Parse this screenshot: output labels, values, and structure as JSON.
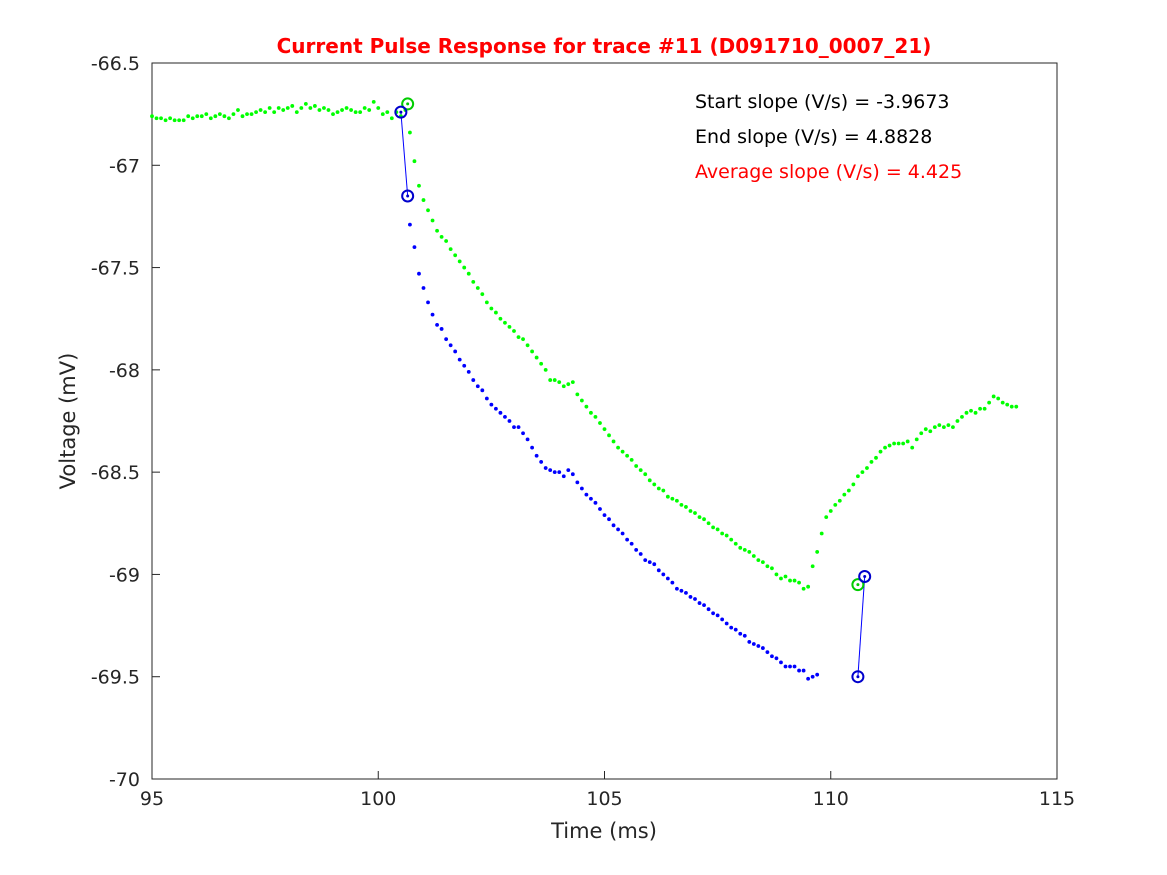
{
  "chart_data": {
    "type": "scatter",
    "title": "Current Pulse Response for trace #11 (D091710_0007_21)",
    "xlabel": "Time (ms)",
    "ylabel": "Voltage (mV)",
    "xlim": [
      95,
      115
    ],
    "ylim": [
      -70,
      -66.5
    ],
    "xticks": [
      95,
      100,
      105,
      110,
      115
    ],
    "xtick_labels": [
      "95",
      "100",
      "105",
      "110",
      "115"
    ],
    "yticks": [
      -70,
      -69.5,
      -69,
      -68.5,
      -68,
      -67.5,
      -67,
      -66.5
    ],
    "ytick_labels": [
      "-70",
      "-69.5",
      "-69",
      "-68.5",
      "-68",
      "-67.5",
      "-67",
      "-66.5"
    ],
    "grid": false,
    "legend": "none",
    "annotations": [
      {
        "text": "Start slope (V/s) = -3.9673",
        "color": "#000000"
      },
      {
        "text": "End slope (V/s) = 4.8828",
        "color": "#000000"
      },
      {
        "text": "Average slope (V/s) = 4.425",
        "color": "#ff0000"
      }
    ],
    "series": [
      {
        "color": "#00ff00",
        "marker": "dot",
        "x_start": 95,
        "x_step": 0.1,
        "y": [
          -66.76,
          -66.77,
          -66.77,
          -66.78,
          -66.77,
          -66.78,
          -66.78,
          -66.78,
          -66.76,
          -66.77,
          -66.76,
          -66.76,
          -66.75,
          -66.77,
          -66.76,
          -66.75,
          -66.76,
          -66.77,
          -66.75,
          -66.73,
          -66.76,
          -66.75,
          -66.75,
          -66.74,
          -66.73,
          -66.74,
          -66.72,
          -66.74,
          -66.72,
          -66.73,
          -66.72,
          -66.71,
          -66.74,
          -66.72,
          -66.7,
          -66.72,
          -66.71,
          -66.73,
          -66.72,
          -66.73,
          -66.75,
          -66.74,
          -66.73,
          -66.72,
          -66.73,
          -66.74,
          -66.74,
          -66.72,
          -66.73,
          -66.69,
          -66.72,
          -66.75,
          -66.74,
          -66.77,
          -66.74,
          -66.76,
          -66.73,
          -66.84,
          -66.98,
          -67.1,
          -67.17,
          -67.22,
          -67.27,
          -67.32,
          -67.35,
          -67.37,
          -67.41,
          -67.44,
          -67.47,
          -67.5,
          -67.53,
          -67.57,
          -67.6,
          -67.63,
          -67.67,
          -67.7,
          -67.72,
          -67.75,
          -67.77,
          -67.79,
          -67.81,
          -67.84,
          -67.85,
          -67.88,
          -67.91,
          -67.94,
          -67.97,
          -68.0,
          -68.05,
          -68.05,
          -68.06,
          -68.08,
          -68.07,
          -68.06,
          -68.12,
          -68.15,
          -68.18,
          -68.21,
          -68.23,
          -68.26,
          -68.29,
          -68.32,
          -68.35,
          -68.38,
          -68.4,
          -68.42,
          -68.44,
          -68.47,
          -68.49,
          -68.51,
          -68.54,
          -68.56,
          -68.58,
          -68.59,
          -68.62,
          -68.63,
          -68.64,
          -68.66,
          -68.67,
          -68.69,
          -68.7,
          -68.72,
          -68.73,
          -68.75,
          -68.77,
          -68.78,
          -68.8,
          -68.81,
          -68.83,
          -68.85,
          -68.87,
          -68.88,
          -68.89,
          -68.91,
          -68.93,
          -68.94,
          -68.96,
          -68.97,
          -69.0,
          -69.02,
          -69.01,
          -69.03,
          -69.03,
          -69.04,
          -69.07,
          -69.06,
          -68.96,
          -68.89,
          -68.8,
          -68.72,
          -68.69,
          -68.66,
          -68.64,
          -68.61,
          -68.59,
          -68.56,
          -68.52,
          -68.5,
          -68.48,
          -68.45,
          -68.43,
          -68.4,
          -68.38,
          -68.37,
          -68.36,
          -68.36,
          -68.36,
          -68.35,
          -68.38,
          -68.34,
          -68.31,
          -68.29,
          -68.3,
          -68.28,
          -68.27,
          -68.28,
          -68.27,
          -68.28,
          -68.25,
          -68.23,
          -68.21,
          -68.2,
          -68.21,
          -68.19,
          -68.19,
          -68.16,
          -68.13,
          -68.14,
          -68.16,
          -68.17,
          -68.18,
          -68.18
        ]
      },
      {
        "color": "#0000ff",
        "marker": "dot",
        "x_start": 100.7,
        "x_step": 0.1,
        "y": [
          -67.29,
          -67.4,
          -67.53,
          -67.6,
          -67.67,
          -67.73,
          -67.78,
          -67.8,
          -67.85,
          -67.88,
          -67.91,
          -67.95,
          -67.98,
          -68.01,
          -68.05,
          -68.08,
          -68.1,
          -68.14,
          -68.17,
          -68.19,
          -68.21,
          -68.23,
          -68.25,
          -68.28,
          -68.28,
          -68.31,
          -68.34,
          -68.38,
          -68.42,
          -68.45,
          -68.48,
          -68.49,
          -68.5,
          -68.5,
          -68.52,
          -68.49,
          -68.51,
          -68.55,
          -68.58,
          -68.61,
          -68.63,
          -68.65,
          -68.68,
          -68.71,
          -68.73,
          -68.76,
          -68.78,
          -68.8,
          -68.83,
          -68.85,
          -68.88,
          -68.9,
          -68.93,
          -68.94,
          -68.95,
          -68.98,
          -69.0,
          -69.02,
          -69.04,
          -69.07,
          -69.08,
          -69.09,
          -69.11,
          -69.12,
          -69.14,
          -69.15,
          -69.17,
          -69.19,
          -69.2,
          -69.22,
          -69.24,
          -69.26,
          -69.27,
          -69.29,
          -69.3,
          -69.33,
          -69.34,
          -69.35,
          -69.36,
          -69.38,
          -69.4,
          -69.41,
          -69.43,
          -69.45,
          -69.45,
          -69.45,
          -69.47,
          -69.47,
          -69.51,
          -69.5,
          -69.49
        ]
      }
    ],
    "markers": [
      {
        "color": "#00cc00",
        "x": 100.65,
        "y": -66.7
      },
      {
        "color": "#0000cc",
        "x": 100.5,
        "y": -66.74
      },
      {
        "color": "#0000cc",
        "x": 100.65,
        "y": -67.15
      },
      {
        "color": "#00cc00",
        "x": 110.6,
        "y": -69.05
      },
      {
        "color": "#0000cc",
        "x": 110.75,
        "y": -69.01
      },
      {
        "color": "#0000cc",
        "x": 110.6,
        "y": -69.5
      }
    ],
    "lines": [
      {
        "color": "#0000ff",
        "points": [
          [
            100.5,
            -66.74
          ],
          [
            100.65,
            -67.15
          ]
        ]
      },
      {
        "color": "#0000ff",
        "points": [
          [
            110.75,
            -69.01
          ],
          [
            110.6,
            -69.5
          ]
        ]
      }
    ]
  }
}
